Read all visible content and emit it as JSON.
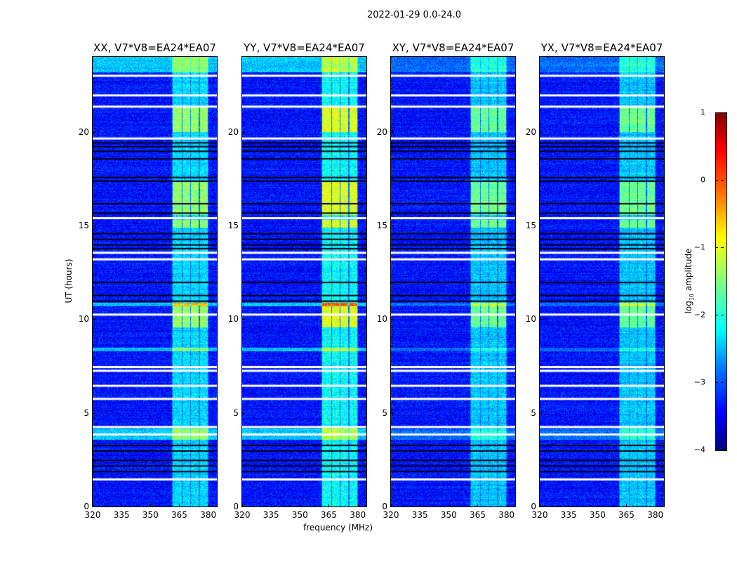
{
  "figure": {
    "suptitle": "2022-01-29 0.0-24.0"
  },
  "chart_data": {
    "type": "heatmap",
    "title": "2022-01-29 0.0-24.0",
    "xlabel": "frequency (MHz)",
    "ylabel": "UT (hours)",
    "xlim": [
      320,
      384.5
    ],
    "ylim": [
      0,
      24
    ],
    "xticks": [
      "320",
      "335",
      "350",
      "365",
      "380"
    ],
    "xtick_values": [
      320,
      335,
      350,
      365,
      380
    ],
    "yticks": [
      "0",
      "5",
      "10",
      "15",
      "20"
    ],
    "ytick_values": [
      0,
      5,
      10,
      15,
      20
    ],
    "panels": [
      {
        "title": "XX, V7*V8=EA24*EA07",
        "rfi_strength": 1.0,
        "low_band_boost": 1.0
      },
      {
        "title": "YY, V7*V8=EA24*EA07",
        "rfi_strength": 1.2,
        "low_band_boost": 1.0
      },
      {
        "title": "XY, V7*V8=EA24*EA07",
        "rfi_strength": 0.9,
        "low_band_boost": 0.5
      },
      {
        "title": "YX, V7*V8=EA24*EA07",
        "rfi_strength": 0.9,
        "low_band_boost": 0.5
      }
    ],
    "base_log_amplitude": -3.3,
    "rfi_bands_mhz": [
      [
        361.5,
        366
      ],
      [
        366.5,
        370.5
      ],
      [
        371,
        375
      ],
      [
        375.5,
        379.5
      ]
    ],
    "strong_rfi_hours": [
      [
        20,
        21.4
      ],
      [
        15.6,
        17.4
      ],
      [
        14.9,
        15.3
      ],
      [
        9.6,
        10.9
      ]
    ],
    "bright_wideband_hours": [
      [
        23.2,
        24
      ],
      [
        3.6,
        4.2
      ],
      [
        8.3,
        8.5
      ],
      [
        10.7,
        10.9
      ]
    ],
    "flagged_white_hours": [
      23.05,
      22.0,
      21.4,
      19.7,
      15.45,
      13.6,
      13.25,
      10.3,
      7.5,
      7.3,
      6.5,
      5.8,
      4.3,
      3.9,
      1.5
    ],
    "dark_hours": [
      19.45,
      19.25,
      19.0,
      18.6,
      17.6,
      17.4,
      16.2,
      15.7,
      14.6,
      14.3,
      14.0,
      13.8,
      12.0,
      11.3,
      11.0,
      3.3,
      3.0,
      2.5,
      2.2,
      1.9
    ],
    "colorbar": {
      "label": "log10 amplitude",
      "label_main": "log",
      "label_sub": "10",
      "label_rest": " amplitude",
      "range": [
        -4,
        1
      ],
      "ticks": [
        "1",
        "0",
        "−1",
        "−2",
        "−3",
        "−4"
      ],
      "tick_values": [
        1,
        0,
        -1,
        -2,
        -3,
        -4
      ],
      "colormap": "jet"
    }
  }
}
